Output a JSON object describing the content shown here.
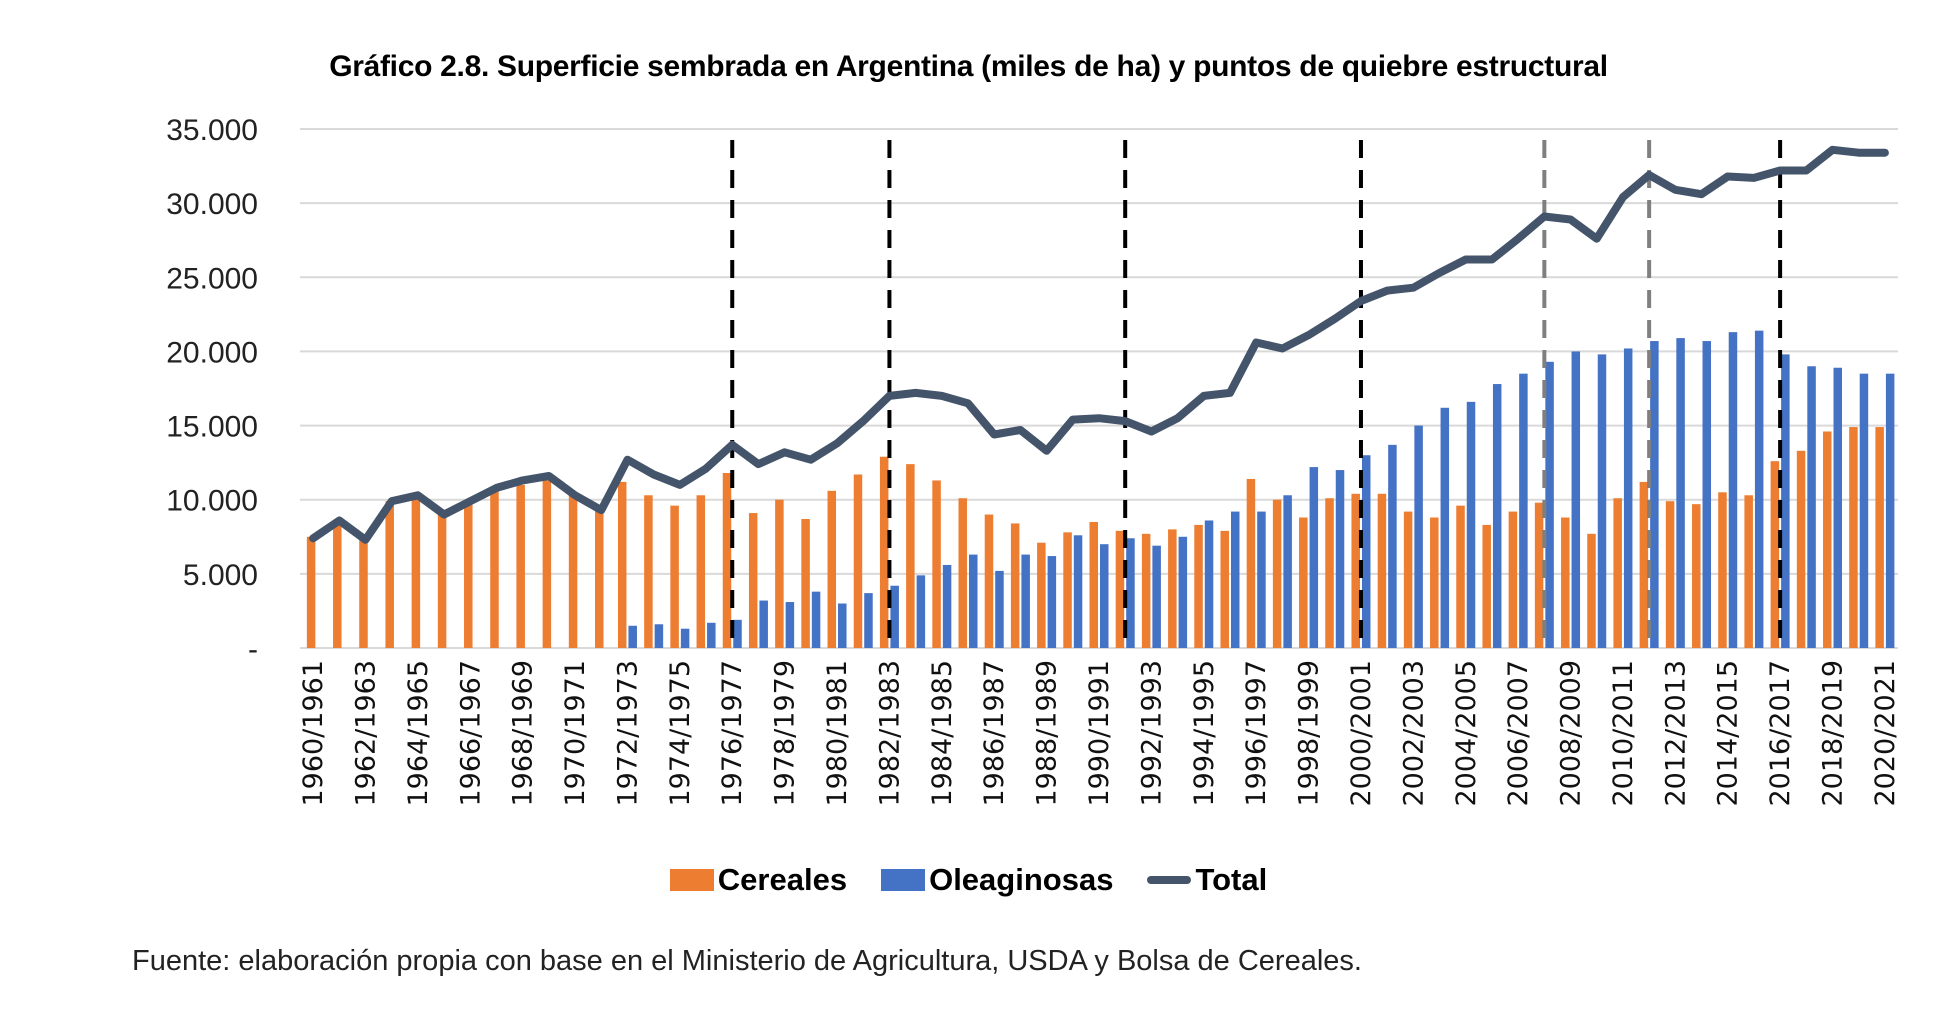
{
  "chart_data": {
    "type": "bar",
    "title": "Gráfico 2.8. Superficie sembrada en Argentina (miles de ha) y puntos de quiebre estructural",
    "xlabel": "",
    "ylabel": "",
    "ylim": [
      0,
      35000
    ],
    "grid": true,
    "legend_position": "bottom",
    "y_ticks": [
      0,
      5000,
      10000,
      15000,
      20000,
      25000,
      30000,
      35000
    ],
    "y_tick_labels": [
      "-",
      "5.000",
      "10.000",
      "15.000",
      "20.000",
      "25.000",
      "30.000",
      "35.000"
    ],
    "categories": [
      "1960/1961",
      "1961/1962",
      "1962/1963",
      "1963/1964",
      "1964/1965",
      "1965/1966",
      "1966/1967",
      "1967/1968",
      "1968/1969",
      "1969/1970",
      "1970/1971",
      "1971/1972",
      "1972/1973",
      "1973/1974",
      "1974/1975",
      "1975/1976",
      "1976/1977",
      "1977/1978",
      "1978/1979",
      "1979/1980",
      "1980/1981",
      "1981/1982",
      "1982/1983",
      "1983/1984",
      "1984/1985",
      "1985/1986",
      "1986/1987",
      "1987/1988",
      "1988/1989",
      "1989/1990",
      "1990/1991",
      "1991/1992",
      "1992/1993",
      "1993/1994",
      "1994/1995",
      "1995/1996",
      "1996/1997",
      "1997/1998",
      "1998/1999",
      "1999/2000",
      "2000/2001",
      "2001/2002",
      "2002/2003",
      "2003/2004",
      "2004/2005",
      "2005/2006",
      "2006/2007",
      "2007/2008",
      "2008/2009",
      "2009/2010",
      "2010/2011",
      "2011/2012",
      "2012/2013",
      "2013/2014",
      "2014/2015",
      "2015/2016",
      "2016/2017",
      "2017/2018",
      "2018/2019",
      "2019/2020",
      "2020/2021"
    ],
    "x_tick_labels_shown": [
      "1960/1961",
      "1962/1963",
      "1964/1965",
      "1966/1967",
      "1968/1969",
      "1970/1971",
      "1972/1973",
      "1974/1975",
      "1976/1977",
      "1978/1979",
      "1980/1981",
      "1982/1983",
      "1984/1985",
      "1986/1987",
      "1988/1989",
      "1990/1991",
      "1992/1993",
      "1994/1995",
      "1996/1997",
      "1998/1999",
      "2000/2001",
      "2002/2003",
      "2004/2005",
      "2006/2007",
      "2008/2009",
      "2010/2011",
      "2012/2013",
      "2014/2015",
      "2016/2017",
      "2018/2019",
      "2020/2021"
    ],
    "series": [
      {
        "name": "Cereales",
        "type": "bar",
        "color": "#ED7D31",
        "values": [
          7500,
          8300,
          7300,
          9900,
          10100,
          9000,
          9800,
          10600,
          11000,
          11300,
          10400,
          9300,
          11200,
          10300,
          9600,
          10300,
          11800,
          9100,
          10000,
          8700,
          10600,
          11700,
          12900,
          12400,
          11300,
          10100,
          9000,
          8400,
          7100,
          7800,
          8500,
          7900,
          7700,
          8000,
          8300,
          7900,
          11400,
          10000,
          8800,
          10100,
          10400,
          10400,
          9200,
          8800,
          9600,
          8300,
          9200,
          9800,
          8800,
          7700,
          10100,
          11200,
          9900,
          9700,
          10500,
          10300,
          12600,
          13300,
          14600,
          14900,
          14900
        ]
      },
      {
        "name": "Oleaginosas",
        "type": "bar",
        "color": "#4472C4",
        "values": [
          0,
          0,
          0,
          0,
          0,
          0,
          0,
          0,
          0,
          0,
          0,
          0,
          1500,
          1600,
          1300,
          1700,
          1900,
          3200,
          3100,
          3800,
          3000,
          3700,
          4200,
          4900,
          5600,
          6300,
          5200,
          6300,
          6200,
          7600,
          7000,
          7400,
          6900,
          7500,
          8600,
          9200,
          9200,
          10300,
          12200,
          12000,
          13000,
          13700,
          15000,
          16200,
          16600,
          17800,
          18500,
          19300,
          20000,
          19800,
          20200,
          20700,
          20900,
          20700,
          21300,
          21400,
          19800,
          19000,
          18900,
          18500,
          18500
        ]
      },
      {
        "name": "Total",
        "type": "line",
        "color": "#44546A",
        "values": [
          7400,
          8600,
          7300,
          9900,
          10300,
          9000,
          9900,
          10800,
          11300,
          11600,
          10300,
          9300,
          12700,
          11700,
          11000,
          12100,
          13700,
          12400,
          13200,
          12700,
          13800,
          15300,
          17000,
          17200,
          17000,
          16500,
          14400,
          14700,
          13300,
          15400,
          15500,
          15300,
          14600,
          15500,
          17000,
          17200,
          20600,
          20200,
          21100,
          22200,
          23400,
          24100,
          24300,
          25300,
          26200,
          26200,
          27600,
          29100,
          28900,
          27600,
          30400,
          31900,
          30900,
          30600,
          31800,
          31700,
          32200,
          32200,
          33600,
          33400,
          33400
        ]
      }
    ],
    "annotations": {
      "structural_breaks": [
        {
          "after_category": "1976/1977",
          "style": "dashed",
          "color": "#000000"
        },
        {
          "after_category": "1982/1983",
          "style": "dashed",
          "color": "#000000"
        },
        {
          "after_category": "1991/1992",
          "style": "dashed",
          "color": "#000000"
        },
        {
          "after_category": "2000/2001",
          "style": "dashed",
          "color": "#000000"
        },
        {
          "after_category": "2007/2008",
          "style": "dashed",
          "color": "#7f7f7f"
        },
        {
          "after_category": "2011/2012",
          "style": "dashed",
          "color": "#7f7f7f"
        },
        {
          "after_category": "2016/2017",
          "style": "dashed",
          "color": "#000000"
        }
      ]
    }
  },
  "legend": [
    {
      "label": "Cereales",
      "kind": "bar",
      "color": "#ED7D31"
    },
    {
      "label": "Oleaginosas",
      "kind": "bar",
      "color": "#4472C4"
    },
    {
      "label": "Total",
      "kind": "line",
      "color": "#44546A"
    }
  ],
  "source": "Fuente: elaboración propia con base en el Ministerio de Agricultura, USDA y Bolsa de Cereales."
}
